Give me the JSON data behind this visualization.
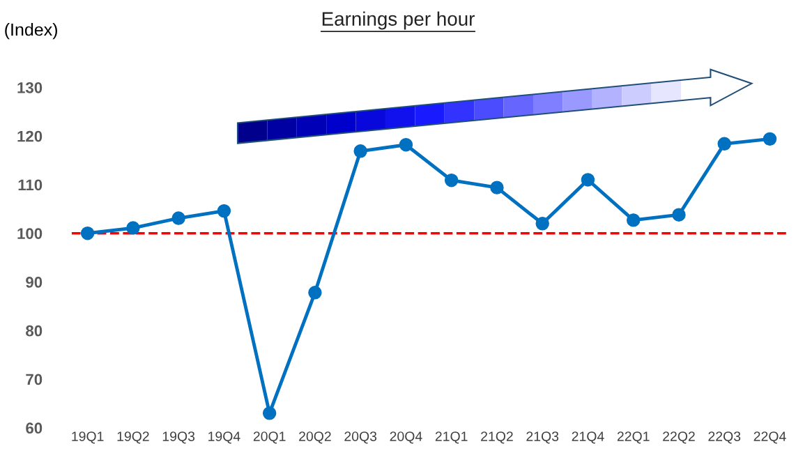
{
  "chart_data": {
    "type": "line",
    "title": "Earnings per hour",
    "ylabel": "(Index)",
    "categories": [
      "19Q1",
      "19Q2",
      "19Q3",
      "19Q4",
      "20Q1",
      "20Q2",
      "20Q3",
      "20Q4",
      "21Q1",
      "21Q2",
      "21Q3",
      "21Q4",
      "22Q1",
      "22Q2",
      "22Q3",
      "22Q4"
    ],
    "series": [
      {
        "color": "#0070c0",
        "values": [
          100,
          101.1,
          103.1,
          104.6,
          63.0,
          87.8,
          116.9,
          118.2,
          110.9,
          109.4,
          102.0,
          111.0,
          102.7,
          103.8,
          118.4,
          119.4
        ]
      }
    ],
    "ylim": [
      60,
      130
    ],
    "yticks": [
      60,
      70,
      80,
      90,
      100,
      110,
      120,
      130
    ],
    "ref_lines": [
      {
        "axis": "y",
        "value": 100,
        "color": "#ff0000",
        "line_style": "dashed"
      }
    ],
    "marker": "circle",
    "line_style": "solid",
    "grid": false,
    "legend": false
  }
}
